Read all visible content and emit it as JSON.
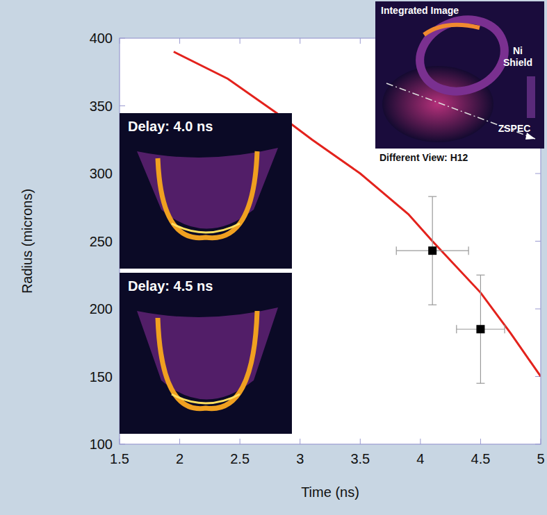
{
  "chart_data": {
    "type": "line",
    "x_label": "Time (ns)",
    "y_label": "Radius (microns)",
    "xlim": [
      1.5,
      5
    ],
    "ylim": [
      100,
      400
    ],
    "xticks": [
      1.5,
      2,
      2.5,
      3,
      3.5,
      4,
      4.5,
      5
    ],
    "yticks": [
      100,
      150,
      200,
      250,
      300,
      350,
      400
    ],
    "grid": false,
    "series": [
      {
        "type": "line",
        "color": "#e3221c",
        "line_style": "solid",
        "x": [
          1.95,
          2.4,
          2.8,
          3.1,
          3.5,
          3.9,
          4.1,
          4.5,
          4.75,
          5
        ],
        "values": [
          390,
          370,
          345,
          325,
          300,
          270,
          250,
          212,
          182,
          150
        ]
      },
      {
        "type": "scatter",
        "color": "#000000",
        "marker": "square",
        "x": [
          4.1,
          4.5
        ],
        "values": [
          243,
          185
        ],
        "x_error": [
          0.3,
          0.2
        ],
        "y_error": [
          40,
          40
        ]
      }
    ],
    "insets": [
      {
        "title": "Delay: 4.0 ns"
      },
      {
        "title": "Delay: 4.5 ns"
      },
      {
        "title": "Integrated Image",
        "labels": [
          "Ni Shield",
          "ZSPEC"
        ],
        "caption": "Different View: H12"
      }
    ]
  }
}
